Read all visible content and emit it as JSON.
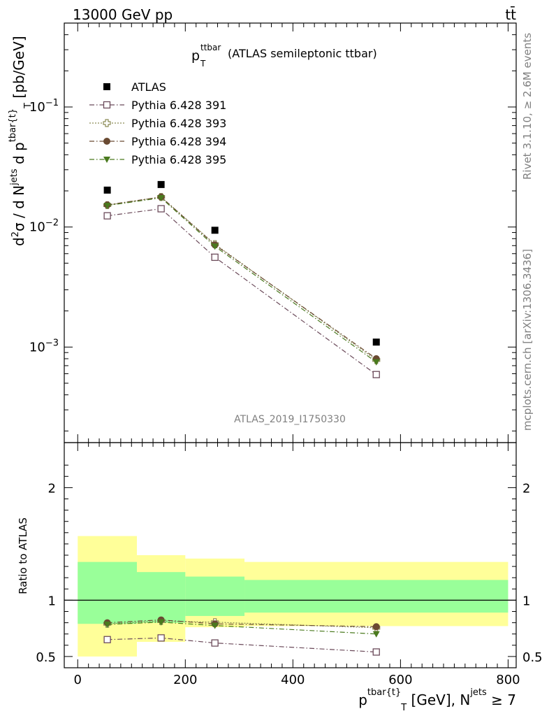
{
  "header": {
    "left": "13000 GeV pp",
    "right": "tt̄"
  },
  "side_labels": {
    "rivet": "Rivet 3.1.10, ≥ 2.6M events",
    "mcplots": "mcplots.cern.ch [arXiv:1306.3436]"
  },
  "analysis_id": "ATLAS_2019_I1750330",
  "plot_title": {
    "main": "p",
    "sub": "T",
    "sup": "ttbar",
    "rest": " (ATLAS semileptonic ttbar)"
  },
  "axis_labels": {
    "upper_y": "d²σ / d Nʲᵉᵗˢ d pᵀ^tbar{t} [pb/GeV]",
    "ratio_y": "Ratio to ATLAS",
    "x": "pᵀ^tbar{t} [GeV], Nʲᵉᵗˢ ≥ 7"
  },
  "colors": {
    "atlas": "#000000",
    "p391": "#6b4a5a",
    "p393": "#8a8a55",
    "p394": "#6a4a32",
    "p395": "#4a7a1e",
    "band_inner": "#99ff99",
    "band_outer": "#ffff99"
  },
  "chart_data": [
    {
      "type": "scatter",
      "panel": "main",
      "title": "p_T^ttbar (ATLAS semileptonic ttbar)",
      "xlabel": "p_T^tbar{t} [GeV], N^jets ≥ 7",
      "ylabel": "d²σ / d N^jets d p_T^tbar{t} [pb/GeV]",
      "yscale": "log",
      "xlim": [
        -25,
        815
      ],
      "ylim": [
        0.00016,
        0.5
      ],
      "yticks": [
        {
          "value": 0.001,
          "label": "10^-3"
        },
        {
          "value": 0.01,
          "label": "10^-2"
        },
        {
          "value": 0.1,
          "label": "10^-1"
        }
      ],
      "x": [
        55,
        155,
        255,
        555
      ],
      "series": [
        {
          "name": "ATLAS",
          "marker": "square-filled",
          "values": [
            0.0203,
            0.0226,
            0.0094,
            0.0011
          ]
        },
        {
          "name": "Pythia 6.428 391",
          "marker": "square-open",
          "line": "dashdot",
          "values": [
            0.0124,
            0.0142,
            0.0056,
            0.00059
          ]
        },
        {
          "name": "Pythia 6.428 393",
          "marker": "cross-open",
          "line": "dotted",
          "values": [
            0.0152,
            0.0178,
            0.0072,
            0.00078
          ]
        },
        {
          "name": "Pythia 6.428 394",
          "marker": "circle-filled",
          "line": "dashdot",
          "values": [
            0.0153,
            0.0178,
            0.0071,
            0.0008
          ]
        },
        {
          "name": "Pythia 6.428 395",
          "marker": "triangle-down-filled",
          "line": "dashdot",
          "values": [
            0.0151,
            0.0175,
            0.0069,
            0.00075
          ]
        }
      ],
      "legend": "top-left"
    },
    {
      "type": "line",
      "panel": "ratio",
      "ylabel": "Ratio to ATLAS",
      "xlabel": "p_T^tbar{t} [GeV], N^jets ≥ 7",
      "xlim": [
        -25,
        815
      ],
      "ylim": [
        0.4,
        2.4
      ],
      "yticks": [
        0.5,
        1,
        2
      ],
      "xticks": [
        0,
        200,
        400,
        600,
        800
      ],
      "bins": [
        {
          "lo": 0,
          "hi": 110,
          "inner": [
            0.79,
            1.34
          ],
          "outer": [
            0.5,
            1.57
          ]
        },
        {
          "lo": 110,
          "hi": 200,
          "inner": [
            0.8,
            1.25
          ],
          "outer": [
            0.63,
            1.4
          ]
        },
        {
          "lo": 200,
          "hi": 310,
          "inner": [
            0.86,
            1.21
          ],
          "outer": [
            0.76,
            1.37
          ]
        },
        {
          "lo": 310,
          "hi": 800,
          "inner": [
            0.89,
            1.18
          ],
          "outer": [
            0.77,
            1.34
          ]
        }
      ],
      "x": [
        55,
        155,
        255,
        555
      ],
      "series": [
        {
          "name": "Pythia 6.428 391",
          "values": [
            0.65,
            0.665,
            0.62,
            0.54
          ]
        },
        {
          "name": "Pythia 6.428 393",
          "values": [
            0.79,
            0.815,
            0.805,
            0.755
          ]
        },
        {
          "name": "Pythia 6.428 394",
          "values": [
            0.8,
            0.825,
            0.79,
            0.765
          ]
        },
        {
          "name": "Pythia 6.428 395",
          "values": [
            0.785,
            0.805,
            0.775,
            0.7
          ]
        }
      ]
    }
  ]
}
